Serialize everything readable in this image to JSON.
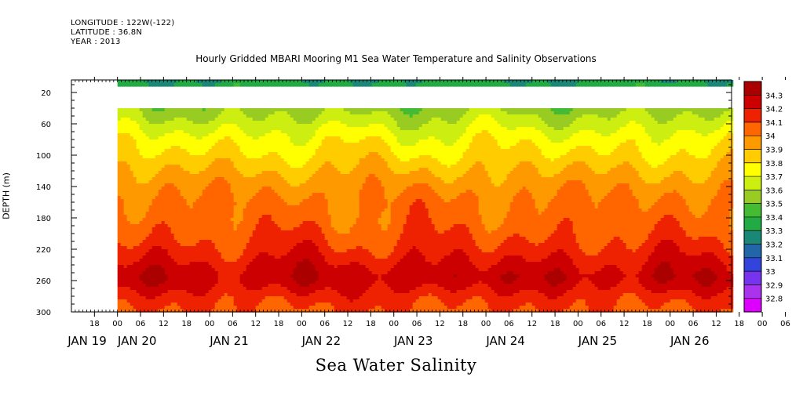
{
  "meta": {
    "longitude": "LONGITUDE : 122W(-122)",
    "latitude": "LATITUDE : 36.8N",
    "year": "YEAR : 2013"
  },
  "chart_data": {
    "type": "heatmap",
    "title": "Hourly Gridded MBARI Mooring M1 Sea Water Temperature and Salinity Observations",
    "xlabel": "Sea Water Salinity",
    "ylabel": "DEPTH (m)",
    "x_start": "JAN 19 12:00",
    "x_end": "JAN 26 16:00",
    "data_start": "JAN 20 00:00",
    "hour_ticks": [
      "18",
      "00",
      "06",
      "12",
      "18",
      "00",
      "06",
      "12",
      "18",
      "00",
      "06",
      "12",
      "18",
      "00",
      "06",
      "12",
      "18",
      "00",
      "06",
      "12",
      "18",
      "00",
      "06",
      "12",
      "18",
      "00",
      "06",
      "12",
      "18",
      "00",
      "06",
      "12"
    ],
    "date_labels": [
      "JAN 19",
      "JAN 20",
      "JAN 21",
      "JAN 22",
      "JAN 23",
      "JAN 24",
      "JAN 25",
      "JAN 26"
    ],
    "y_ticks": [
      20,
      60,
      100,
      140,
      180,
      220,
      260,
      300
    ],
    "ylim": [
      300,
      4
    ],
    "gap_depths": [
      12,
      40
    ],
    "colorbar": {
      "levels": [
        32.8,
        32.9,
        33.0,
        33.1,
        33.2,
        33.3,
        33.4,
        33.5,
        33.6,
        33.7,
        33.8,
        33.9,
        34.0,
        34.1,
        34.2,
        34.3
      ],
      "colors": [
        "#dd00ff",
        "#aa33ee",
        "#7733ee",
        "#3344dd",
        "#2266aa",
        "#1a8877",
        "#22aa44",
        "#44bb33",
        "#99cc22",
        "#ccee11",
        "#ffff00",
        "#ffcc00",
        "#ff9900",
        "#ff6600",
        "#ee2200",
        "#cc0000",
        "#aa0000"
      ]
    },
    "depth_profile": [
      {
        "depth": 4,
        "value": 33.3
      },
      {
        "depth": 12,
        "value": 33.35
      },
      {
        "depth": 40,
        "value": 33.55
      },
      {
        "depth": 60,
        "value": 33.65
      },
      {
        "depth": 80,
        "value": 33.75
      },
      {
        "depth": 100,
        "value": 33.82
      },
      {
        "depth": 120,
        "value": 33.9
      },
      {
        "depth": 140,
        "value": 33.97
      },
      {
        "depth": 160,
        "value": 34.02
      },
      {
        "depth": 180,
        "value": 34.04
      },
      {
        "depth": 200,
        "value": 34.08
      },
      {
        "depth": 220,
        "value": 34.14
      },
      {
        "depth": 240,
        "value": 34.22
      },
      {
        "depth": 255,
        "value": 34.27
      },
      {
        "depth": 265,
        "value": 34.24
      },
      {
        "depth": 280,
        "value": 34.15
      },
      {
        "depth": 300,
        "value": 34.08
      }
    ]
  }
}
